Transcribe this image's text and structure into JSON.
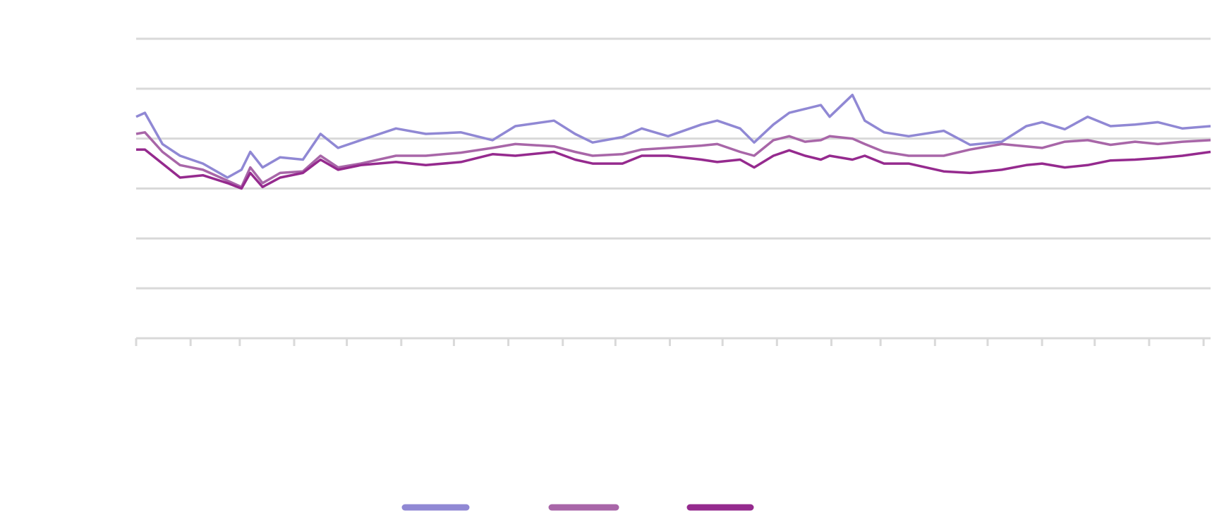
{
  "chart_data": {
    "type": "line",
    "x": [
      0,
      5,
      15,
      25,
      38,
      52,
      60,
      65,
      72,
      82,
      95,
      105,
      115,
      128,
      148,
      165,
      185,
      203,
      216,
      238,
      250,
      260,
      277,
      288,
      303,
      322,
      331,
      344,
      352,
      363,
      372,
      381,
      390,
      395,
      408,
      415,
      426,
      440,
      460,
      475,
      493,
      507,
      516,
      529,
      542,
      555,
      569,
      582,
      596,
      612
    ],
    "series": [
      {
        "color": "#9088d4",
        "values": [
          284,
          289,
          249,
          234,
          224,
          206,
          216,
          239,
          219,
          232,
          229,
          262,
          244,
          254,
          269,
          262,
          264,
          254,
          272,
          279,
          262,
          251,
          258,
          269,
          259,
          274,
          279,
          269,
          251,
          274,
          289,
          294,
          299,
          284,
          312,
          279,
          264,
          259,
          266,
          248,
          252,
          272,
          277,
          268,
          284,
          272,
          274,
          277,
          269,
          272
        ]
      },
      {
        "color": "#a866a8",
        "values": [
          262,
          264,
          239,
          222,
          216,
          202,
          194,
          219,
          199,
          212,
          214,
          234,
          219,
          224,
          234,
          234,
          238,
          244,
          249,
          246,
          239,
          234,
          236,
          242,
          244,
          247,
          249,
          239,
          234,
          254,
          259,
          252,
          254,
          259,
          256,
          249,
          239,
          234,
          234,
          242,
          249,
          246,
          244,
          252,
          254,
          248,
          252,
          249,
          252,
          254
        ]
      },
      {
        "color": "#952a8e",
        "values": [
          242,
          242,
          224,
          206,
          209,
          199,
          192,
          212,
          194,
          206,
          212,
          229,
          216,
          222,
          226,
          222,
          226,
          236,
          234,
          239,
          229,
          224,
          224,
          234,
          234,
          229,
          226,
          229,
          219,
          234,
          241,
          234,
          229,
          234,
          229,
          234,
          224,
          224,
          214,
          212,
          216,
          222,
          224,
          219,
          222,
          228,
          229,
          231,
          234,
          239
        ]
      }
    ],
    "xlim": [
      0,
      612
    ],
    "xticks": [
      0,
      31,
      59,
      90,
      120,
      151,
      181,
      212,
      243,
      273,
      304,
      334,
      365,
      396,
      424,
      455,
      485,
      516,
      546,
      577,
      608
    ],
    "ylim": [
      0,
      384
    ],
    "yticks": [
      0,
      64,
      128,
      192,
      256,
      320,
      384
    ],
    "grid": true
  }
}
